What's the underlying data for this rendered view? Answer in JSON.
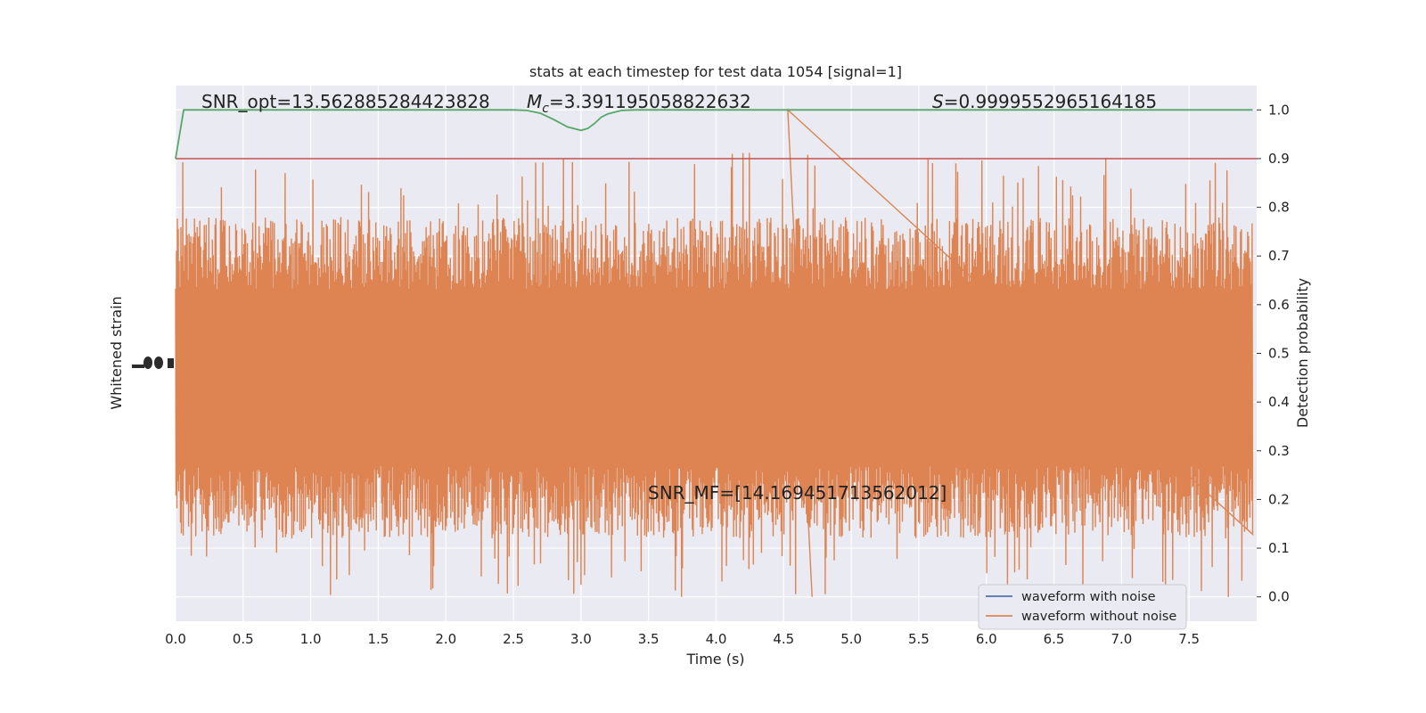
{
  "chart_data": {
    "type": "line",
    "title": "stats at each timestep for test data 1054 [signal=1]",
    "xlabel": "Time (s)",
    "ylabel_left": "Whitened strain",
    "ylabel_right": "Detection probability",
    "xlim": [
      0.0,
      8.0
    ],
    "ylim_right": [
      -0.05,
      1.05
    ],
    "xticks": [
      "0.0",
      "0.5",
      "1.0",
      "1.5",
      "2.0",
      "2.5",
      "3.0",
      "3.5",
      "4.0",
      "4.5",
      "5.0",
      "5.5",
      "6.0",
      "6.5",
      "7.0",
      "7.5"
    ],
    "yticks_right": [
      "0.0",
      "0.1",
      "0.2",
      "0.3",
      "0.4",
      "0.5",
      "0.6",
      "0.7",
      "0.8",
      "0.9",
      "1.0"
    ],
    "grid": true,
    "legend_position": "lower-right",
    "legend": [
      {
        "label": "waveform with noise",
        "color": "#4c72b0"
      },
      {
        "label": "waveform without noise",
        "color": "#dd8452"
      }
    ],
    "annotations": {
      "snr_opt": "SNR_opt=13.562885284423828",
      "mc_symbol": "M",
      "mc_sub": "c",
      "mc_value": "=3.391195058822632",
      "s_symbol": "S",
      "s_value": "=0.9999552965164185",
      "snr_mf": "SNR_MF=[14.169451713562012]"
    },
    "threshold": {
      "value": 0.9,
      "color": "#c44e52"
    },
    "detection_probability": {
      "color": "#55a868",
      "x": [
        0.0,
        0.06,
        0.1,
        0.5,
        1.0,
        1.5,
        2.0,
        2.5,
        2.6,
        2.7,
        2.8,
        2.9,
        3.0,
        3.05,
        3.1,
        3.15,
        3.2,
        3.3,
        3.4,
        3.5,
        4.0,
        5.0,
        6.0,
        7.0,
        7.97
      ],
      "y": [
        0.9,
        1.0,
        1.0,
        1.0,
        1.0,
        1.0,
        1.0,
        1.0,
        0.999,
        0.993,
        0.98,
        0.965,
        0.958,
        0.962,
        0.972,
        0.985,
        0.992,
        0.999,
        1.0,
        1.0,
        1.0,
        1.0,
        1.0,
        1.0,
        1.0
      ]
    },
    "waveform_without_noise": {
      "color": "#dd8452",
      "center": 0.45,
      "typical_amplitude": 0.33,
      "max": 1.0,
      "min": 0.0
    }
  }
}
